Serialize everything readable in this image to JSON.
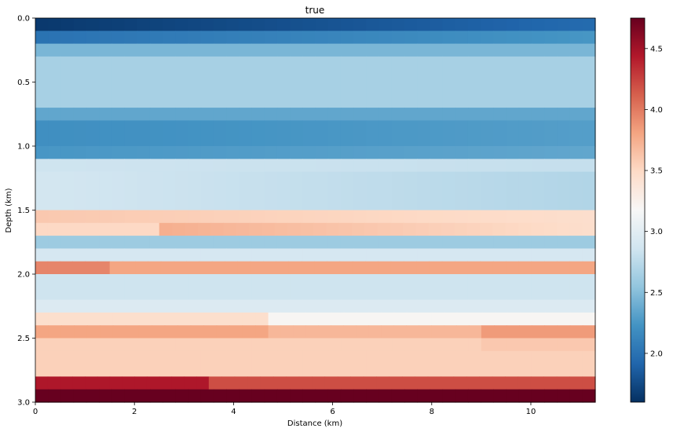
{
  "chart_data": {
    "type": "heatmap",
    "title": "true",
    "xlabel": "Distance (km)",
    "ylabel": "Depth (km)",
    "xlim": [
      0,
      11.3
    ],
    "ylim": [
      3.0,
      0.0
    ],
    "xticks": [
      0,
      2,
      4,
      6,
      8,
      10
    ],
    "xtick_labels": [
      "0",
      "2",
      "4",
      "6",
      "8",
      "10"
    ],
    "yticks": [
      0.0,
      0.5,
      1.0,
      1.5,
      2.0,
      2.5,
      3.0
    ],
    "ytick_labels": [
      "0.0",
      "0.5",
      "1.0",
      "1.5",
      "2.0",
      "2.5",
      "3.0"
    ],
    "colorbar": {
      "vmin": 1.6,
      "vmax": 4.75,
      "ticks": [
        2.0,
        2.5,
        3.0,
        3.5,
        4.0,
        4.5
      ],
      "tick_labels": [
        "2.0",
        "2.5",
        "3.0",
        "3.5",
        "4.0",
        "4.5"
      ],
      "colormap": "RdBu_r"
    },
    "grid": false,
    "layers": [
      {
        "top": 0.0,
        "bottom": 0.1,
        "segments": [
          {
            "x0": 0,
            "x1": 11.3,
            "v0": 1.65,
            "v1": 1.95
          }
        ]
      },
      {
        "top": 0.1,
        "bottom": 0.2,
        "segments": [
          {
            "x0": 0,
            "x1": 11.3,
            "v0": 2.0,
            "v1": 2.25
          }
        ]
      },
      {
        "top": 0.2,
        "bottom": 0.3,
        "segments": [
          {
            "x0": 0,
            "x1": 11.3,
            "v0": 2.45,
            "v1": 2.45
          }
        ]
      },
      {
        "top": 0.3,
        "bottom": 0.7,
        "segments": [
          {
            "x0": 0,
            "x1": 11.3,
            "v0": 2.65,
            "v1": 2.65
          }
        ]
      },
      {
        "top": 0.7,
        "bottom": 0.8,
        "segments": [
          {
            "x0": 0,
            "x1": 11.3,
            "v0": 2.35,
            "v1": 2.35
          }
        ]
      },
      {
        "top": 0.8,
        "bottom": 1.0,
        "segments": [
          {
            "x0": 0,
            "x1": 11.3,
            "v0": 2.2,
            "v1": 2.3
          }
        ]
      },
      {
        "top": 1.0,
        "bottom": 1.1,
        "segments": [
          {
            "x0": 0,
            "x1": 11.3,
            "v0": 2.25,
            "v1": 2.35
          }
        ]
      },
      {
        "top": 1.1,
        "bottom": 1.2,
        "segments": [
          {
            "x0": 0,
            "x1": 11.3,
            "v0": 2.85,
            "v1": 2.8
          }
        ]
      },
      {
        "top": 1.2,
        "bottom": 1.5,
        "segments": [
          {
            "x0": 0,
            "x1": 11.3,
            "v0": 2.88,
            "v1": 2.7
          }
        ]
      },
      {
        "top": 1.5,
        "bottom": 1.6,
        "segments": [
          {
            "x0": 0,
            "x1": 11.3,
            "v0": 3.6,
            "v1": 3.45
          }
        ]
      },
      {
        "top": 1.6,
        "bottom": 1.7,
        "segments": [
          {
            "x0": 0,
            "x1": 2.5,
            "v0": 3.5,
            "v1": 3.5
          },
          {
            "x0": 2.5,
            "x1": 11.3,
            "v0": 3.75,
            "v1": 3.45
          }
        ]
      },
      {
        "top": 1.7,
        "bottom": 1.8,
        "segments": [
          {
            "x0": 0,
            "x1": 11.3,
            "v0": 2.6,
            "v1": 2.6
          }
        ]
      },
      {
        "top": 1.8,
        "bottom": 1.9,
        "segments": [
          {
            "x0": 0,
            "x1": 11.3,
            "v0": 2.9,
            "v1": 2.9
          }
        ]
      },
      {
        "top": 1.9,
        "bottom": 2.0,
        "segments": [
          {
            "x0": 0,
            "x1": 1.5,
            "v0": 3.95,
            "v1": 3.95
          },
          {
            "x0": 1.5,
            "x1": 11.3,
            "v0": 3.8,
            "v1": 3.8
          }
        ]
      },
      {
        "top": 2.0,
        "bottom": 2.2,
        "segments": [
          {
            "x0": 0,
            "x1": 11.3,
            "v0": 2.85,
            "v1": 2.85
          }
        ]
      },
      {
        "top": 2.2,
        "bottom": 2.3,
        "segments": [
          {
            "x0": 0,
            "x1": 11.3,
            "v0": 2.95,
            "v1": 2.95
          }
        ]
      },
      {
        "top": 2.3,
        "bottom": 2.4,
        "segments": [
          {
            "x0": 0,
            "x1": 4.7,
            "v0": 3.45,
            "v1": 3.45
          },
          {
            "x0": 4.7,
            "x1": 11.3,
            "v0": 3.2,
            "v1": 3.2
          }
        ]
      },
      {
        "top": 2.4,
        "bottom": 2.5,
        "segments": [
          {
            "x0": 0,
            "x1": 4.7,
            "v0": 3.8,
            "v1": 3.8
          },
          {
            "x0": 4.7,
            "x1": 9.0,
            "v0": 3.7,
            "v1": 3.7
          },
          {
            "x0": 9.0,
            "x1": 11.3,
            "v0": 3.85,
            "v1": 3.85
          }
        ]
      },
      {
        "top": 2.5,
        "bottom": 2.6,
        "segments": [
          {
            "x0": 0,
            "x1": 9.0,
            "v0": 3.55,
            "v1": 3.55
          },
          {
            "x0": 9.0,
            "x1": 11.3,
            "v0": 3.6,
            "v1": 3.6
          }
        ]
      },
      {
        "top": 2.6,
        "bottom": 2.8,
        "segments": [
          {
            "x0": 0,
            "x1": 11.3,
            "v0": 3.55,
            "v1": 3.55
          }
        ]
      },
      {
        "top": 2.8,
        "bottom": 2.9,
        "segments": [
          {
            "x0": 0,
            "x1": 3.5,
            "v0": 4.45,
            "v1": 4.45
          },
          {
            "x0": 3.5,
            "x1": 11.3,
            "v0": 4.2,
            "v1": 4.2
          }
        ]
      },
      {
        "top": 2.9,
        "bottom": 3.0,
        "segments": [
          {
            "x0": 0,
            "x1": 11.3,
            "v0": 4.75,
            "v1": 4.75
          }
        ]
      }
    ]
  }
}
